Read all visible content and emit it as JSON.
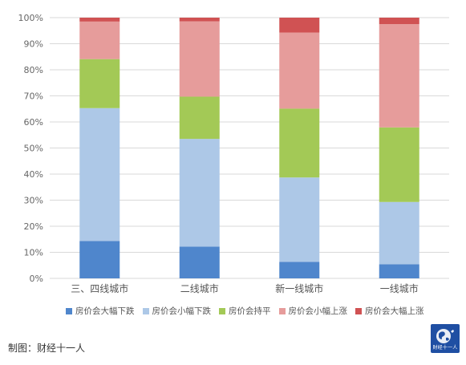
{
  "chart_data": {
    "type": "bar",
    "stacked": true,
    "percent": true,
    "categories": [
      "三、四线城市",
      "二线城市",
      "新一线城市",
      "一线城市"
    ],
    "series": [
      {
        "name": "房价会大幅下跌",
        "color": "#4f86cc",
        "values": [
          14.3,
          12.2,
          6.3,
          5.4
        ]
      },
      {
        "name": "房价会小幅下跌",
        "color": "#adc8e7",
        "values": [
          51.0,
          41.3,
          32.4,
          23.9
        ]
      },
      {
        "name": "房价会持平",
        "color": "#a3c956",
        "values": [
          18.8,
          16.2,
          26.4,
          28.6
        ]
      },
      {
        "name": "房价会小幅上涨",
        "color": "#e69c9b",
        "values": [
          14.4,
          28.9,
          29.2,
          39.6
        ]
      },
      {
        "name": "房价会大幅上涨",
        "color": "#d05253",
        "values": [
          1.5,
          1.4,
          5.7,
          2.5
        ]
      }
    ],
    "yticks": [
      "0%",
      "10%",
      "20%",
      "30%",
      "40%",
      "50%",
      "60%",
      "70%",
      "80%",
      "90%",
      "100%"
    ],
    "ylim": [
      0,
      100
    ],
    "grid": true,
    "legend_position": "bottom"
  },
  "footer": {
    "credit": "制图：财经十一人",
    "logo_text": "财经十一人"
  }
}
